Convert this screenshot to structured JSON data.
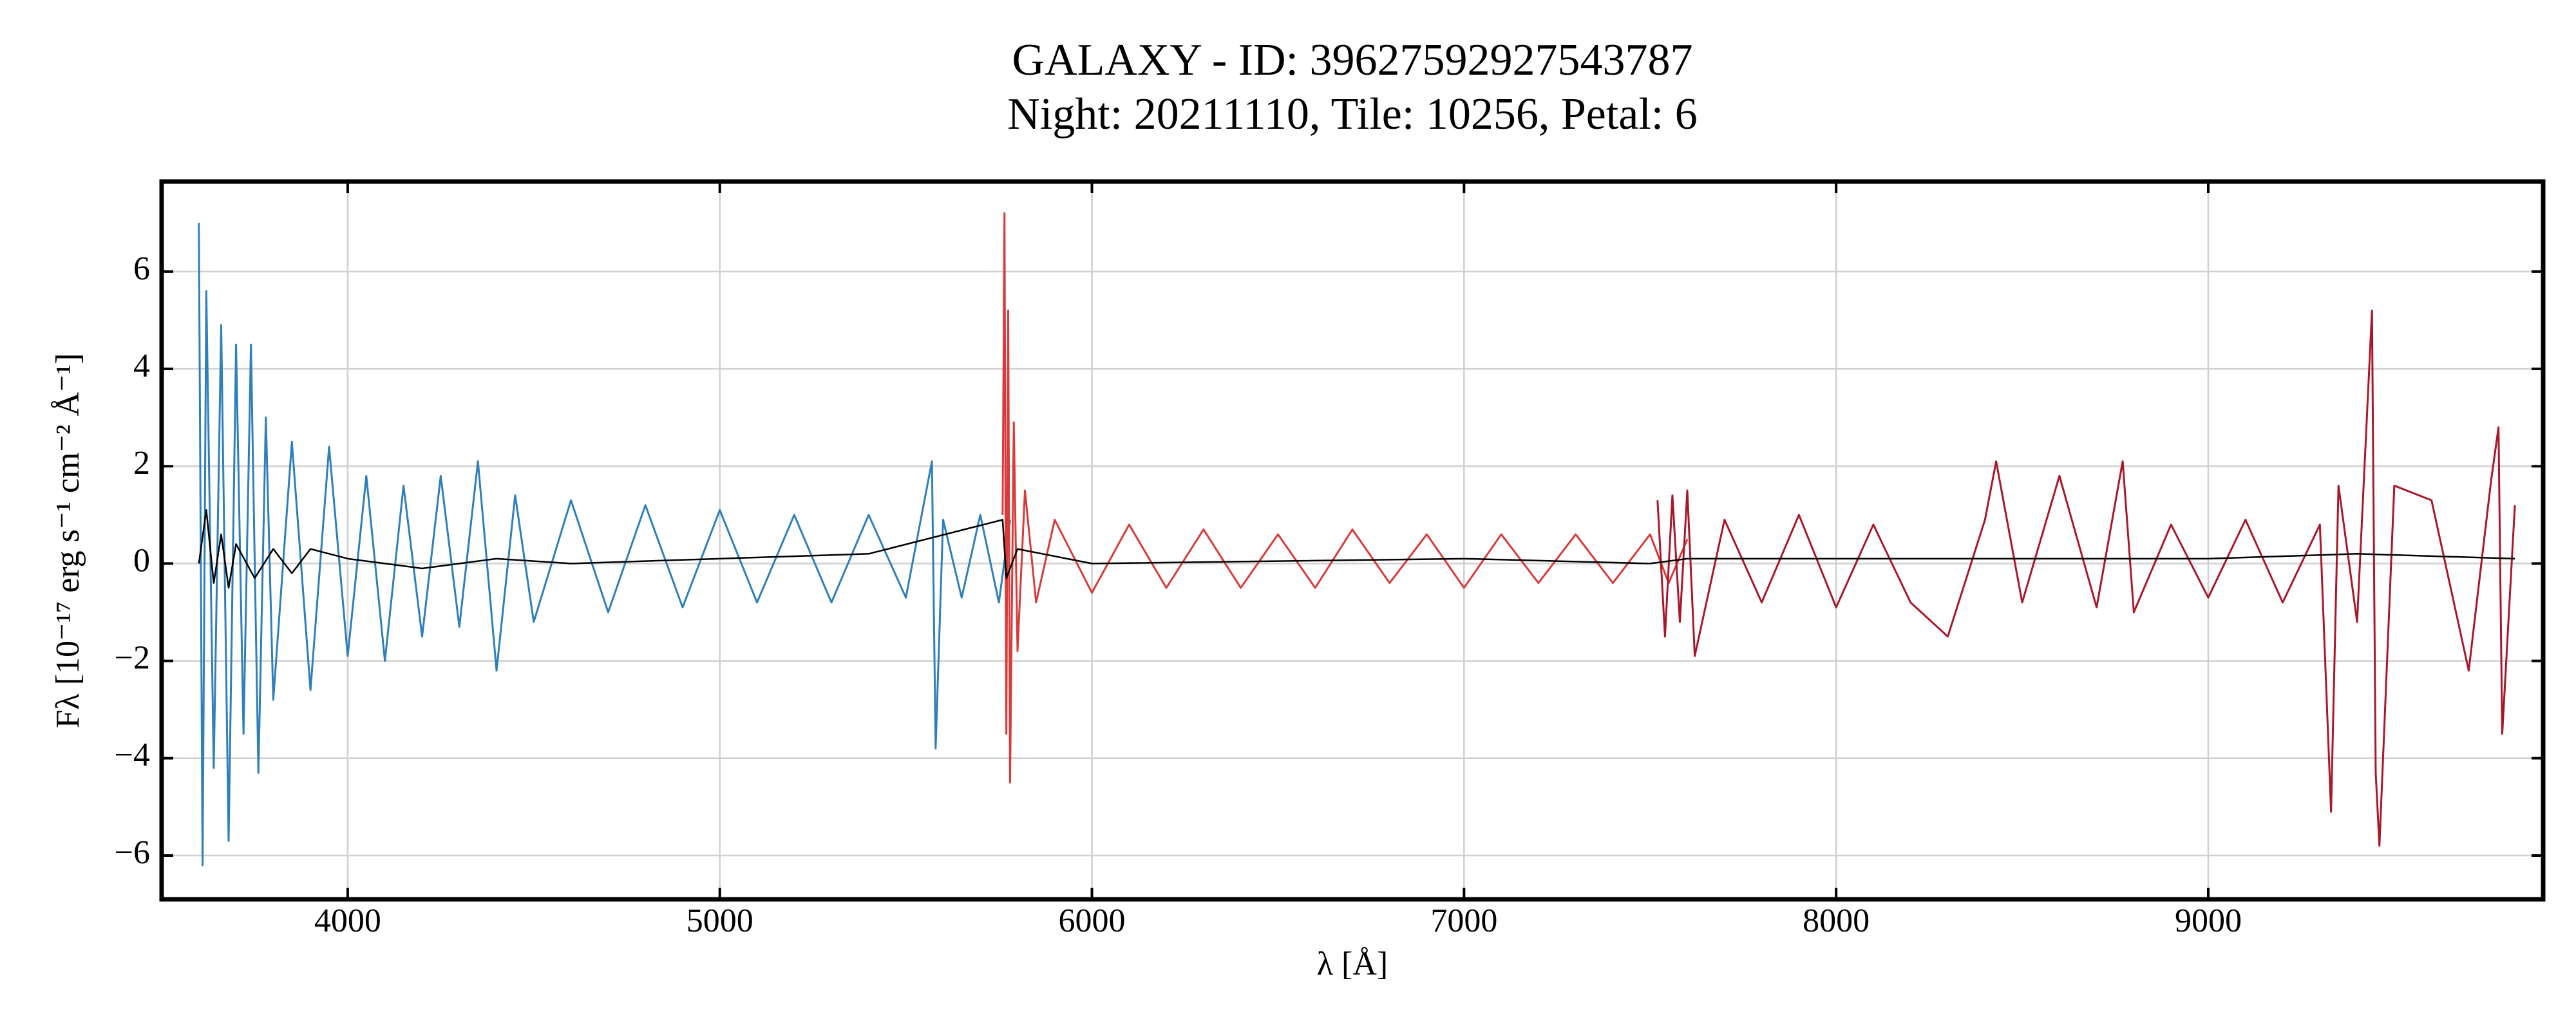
{
  "chart_data": {
    "type": "line",
    "title": "GALAXY - ID: 39627592927543787",
    "subtitle": "Night: 20211110, Tile: 10256, Petal: 6",
    "xlabel": "λ [Å]",
    "ylabel": "Fλ [10⁻¹⁷ erg s⁻¹ cm⁻² Å⁻¹]",
    "xlim": [
      3500,
      9900
    ],
    "ylim": [
      -6.9,
      7.85
    ],
    "xticks": [
      4000,
      5000,
      6000,
      7000,
      8000,
      9000
    ],
    "yticks": [
      {
        "value": -6,
        "label": "−6"
      },
      {
        "value": -4,
        "label": "−4"
      },
      {
        "value": -2,
        "label": "−2"
      },
      0,
      2,
      4,
      6
    ],
    "grid": true,
    "series": [
      {
        "color": "#2e7fba",
        "x": [
          3600,
          3610,
          3620,
          3640,
          3660,
          3680,
          3700,
          3720,
          3740,
          3760,
          3780,
          3800,
          3850,
          3900,
          3950,
          4000,
          4050,
          4100,
          4150,
          4200,
          4250,
          4300,
          4350,
          4400,
          4450,
          4500,
          4600,
          4700,
          4800,
          4900,
          5000,
          5100,
          5200,
          5300,
          5400,
          5500,
          5570,
          5580,
          5600,
          5650,
          5700,
          5750,
          5780
        ],
        "values": [
          7.0,
          -6.2,
          5.6,
          -4.2,
          4.9,
          -5.7,
          4.5,
          -3.5,
          4.5,
          -4.3,
          3.0,
          -2.8,
          2.5,
          -2.6,
          2.4,
          -1.9,
          1.8,
          -2.0,
          1.6,
          -1.5,
          1.8,
          -1.3,
          2.1,
          -2.2,
          1.4,
          -1.2,
          1.3,
          -1.0,
          1.2,
          -0.9,
          1.1,
          -0.8,
          1.0,
          -0.8,
          1.0,
          -0.7,
          2.1,
          -3.8,
          0.9,
          -0.7,
          1.0,
          -0.8,
          0.9
        ]
      },
      {
        "color": "#d93a3a",
        "x": [
          5760,
          5765,
          5770,
          5775,
          5780,
          5790,
          5800,
          5820,
          5850,
          5900,
          6000,
          6100,
          6200,
          6300,
          6400,
          6500,
          6600,
          6700,
          6800,
          6900,
          7000,
          7100,
          7200,
          7300,
          7400,
          7500,
          7550,
          7600
        ],
        "values": [
          1.0,
          7.2,
          -3.5,
          5.2,
          -4.5,
          2.9,
          -1.8,
          1.5,
          -0.8,
          0.9,
          -0.6,
          0.8,
          -0.5,
          0.7,
          -0.5,
          0.6,
          -0.5,
          0.7,
          -0.4,
          0.6,
          -0.5,
          0.6,
          -0.4,
          0.6,
          -0.4,
          0.6,
          -0.4,
          0.5
        ]
      },
      {
        "color": "#a8182a",
        "x": [
          7520,
          7540,
          7560,
          7580,
          7600,
          7620,
          7700,
          7800,
          7900,
          8000,
          8100,
          8200,
          8300,
          8400,
          8430,
          8500,
          8600,
          8700,
          8770,
          8800,
          8900,
          9000,
          9100,
          9200,
          9300,
          9330,
          9350,
          9400,
          9440,
          9450,
          9460,
          9500,
          9600,
          9700,
          9760,
          9780,
          9790,
          9824
        ],
        "values": [
          1.3,
          -1.5,
          1.4,
          -1.2,
          1.5,
          -1.9,
          0.9,
          -0.8,
          1.0,
          -0.9,
          0.8,
          -0.8,
          -1.5,
          0.9,
          2.1,
          -0.8,
          1.8,
          -0.9,
          2.1,
          -1.0,
          0.8,
          -0.7,
          0.9,
          -0.8,
          0.8,
          -5.1,
          1.6,
          -1.2,
          5.2,
          -4.3,
          -5.8,
          1.6,
          1.3,
          -2.2,
          1.7,
          2.8,
          -3.5,
          1.2
        ]
      },
      {
        "color": "#000000",
        "x": [
          3600,
          3620,
          3640,
          3660,
          3680,
          3700,
          3750,
          3800,
          3850,
          3900,
          4000,
          4200,
          4400,
          4600,
          5000,
          5400,
          5760,
          5770,
          5800,
          6000,
          7000,
          7500,
          7600,
          8000,
          9000,
          9400,
          9824
        ],
        "values": [
          0,
          1.1,
          -0.4,
          0.6,
          -0.5,
          0.4,
          -0.3,
          0.3,
          -0.2,
          0.3,
          0.1,
          -0.1,
          0.1,
          0.0,
          0.1,
          0.2,
          0.9,
          -0.3,
          0.3,
          0.0,
          0.1,
          0.0,
          0.1,
          0.1,
          0.1,
          0.2,
          0.1
        ]
      }
    ]
  }
}
